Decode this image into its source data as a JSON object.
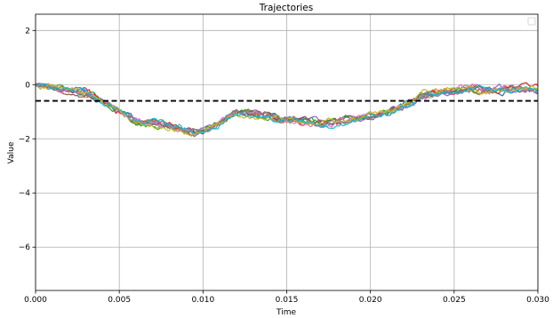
{
  "chart_data": {
    "type": "line",
    "title": "Trajectories",
    "xlabel": "Time",
    "ylabel": "Value",
    "xlim": [
      0.0,
      0.03
    ],
    "ylim": [
      -7.6,
      2.6
    ],
    "xticks": [
      "0.000",
      "0.005",
      "0.010",
      "0.015",
      "0.020",
      "0.025",
      "0.030"
    ],
    "xtick_values": [
      0.0,
      0.005,
      0.01,
      0.015,
      0.02,
      0.025,
      0.03
    ],
    "yticks": [
      "2",
      "0",
      "−2",
      "−4",
      "−6"
    ],
    "ytick_values": [
      2,
      0,
      -2,
      -4,
      -6
    ],
    "grid": true,
    "legend": "top-right, empty",
    "reference_line": {
      "y": -0.6,
      "style": "dashed",
      "color": "#000000"
    },
    "mean_path": {
      "x": [
        0.0,
        0.002,
        0.003,
        0.004,
        0.005,
        0.006,
        0.007,
        0.008,
        0.009,
        0.0095,
        0.01,
        0.011,
        0.012,
        0.013,
        0.014,
        0.015,
        0.016,
        0.017,
        0.018,
        0.019,
        0.02,
        0.021,
        0.022,
        0.023,
        0.024,
        0.025,
        0.026,
        0.027,
        0.028,
        0.029,
        0.03
      ],
      "y": [
        0.0,
        -0.2,
        -0.3,
        -0.6,
        -1.0,
        -1.4,
        -1.4,
        -1.5,
        -1.7,
        -1.8,
        -1.7,
        -1.4,
        -1.05,
        -1.1,
        -1.2,
        -1.3,
        -1.35,
        -1.4,
        -1.4,
        -1.3,
        -1.15,
        -1.0,
        -0.75,
        -0.45,
        -0.3,
        -0.2,
        -0.15,
        -0.2,
        -0.15,
        -0.15,
        -0.2
      ]
    },
    "series": [
      {
        "color": "#1f77b4"
      },
      {
        "color": "#ff7f0e"
      },
      {
        "color": "#2ca02c"
      },
      {
        "color": "#d62728"
      },
      {
        "color": "#9467bd"
      },
      {
        "color": "#8c564b"
      },
      {
        "color": "#e377c2"
      },
      {
        "color": "#7f7f7f"
      },
      {
        "color": "#bcbd22"
      },
      {
        "color": "#17becf"
      }
    ]
  }
}
